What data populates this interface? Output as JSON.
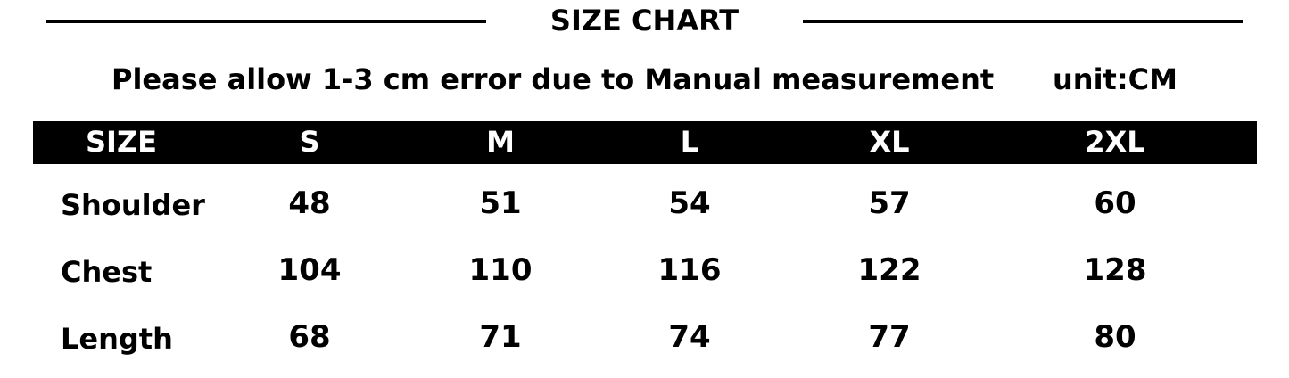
{
  "title": "SIZE CHART",
  "note": "Please allow 1-3 cm error due to Manual measurement",
  "unit": "unit:CM",
  "columns": [
    "SIZE",
    "S",
    "M",
    "L",
    "XL",
    "2XL"
  ],
  "rows": [
    {
      "label": "Shoulder",
      "values": [
        "48",
        "51",
        "54",
        "57",
        "60"
      ]
    },
    {
      "label": "Chest",
      "values": [
        "104",
        "110",
        "116",
        "122",
        "128"
      ]
    },
    {
      "label": "Length",
      "values": [
        "68",
        "71",
        "74",
        "77",
        "80"
      ]
    }
  ]
}
